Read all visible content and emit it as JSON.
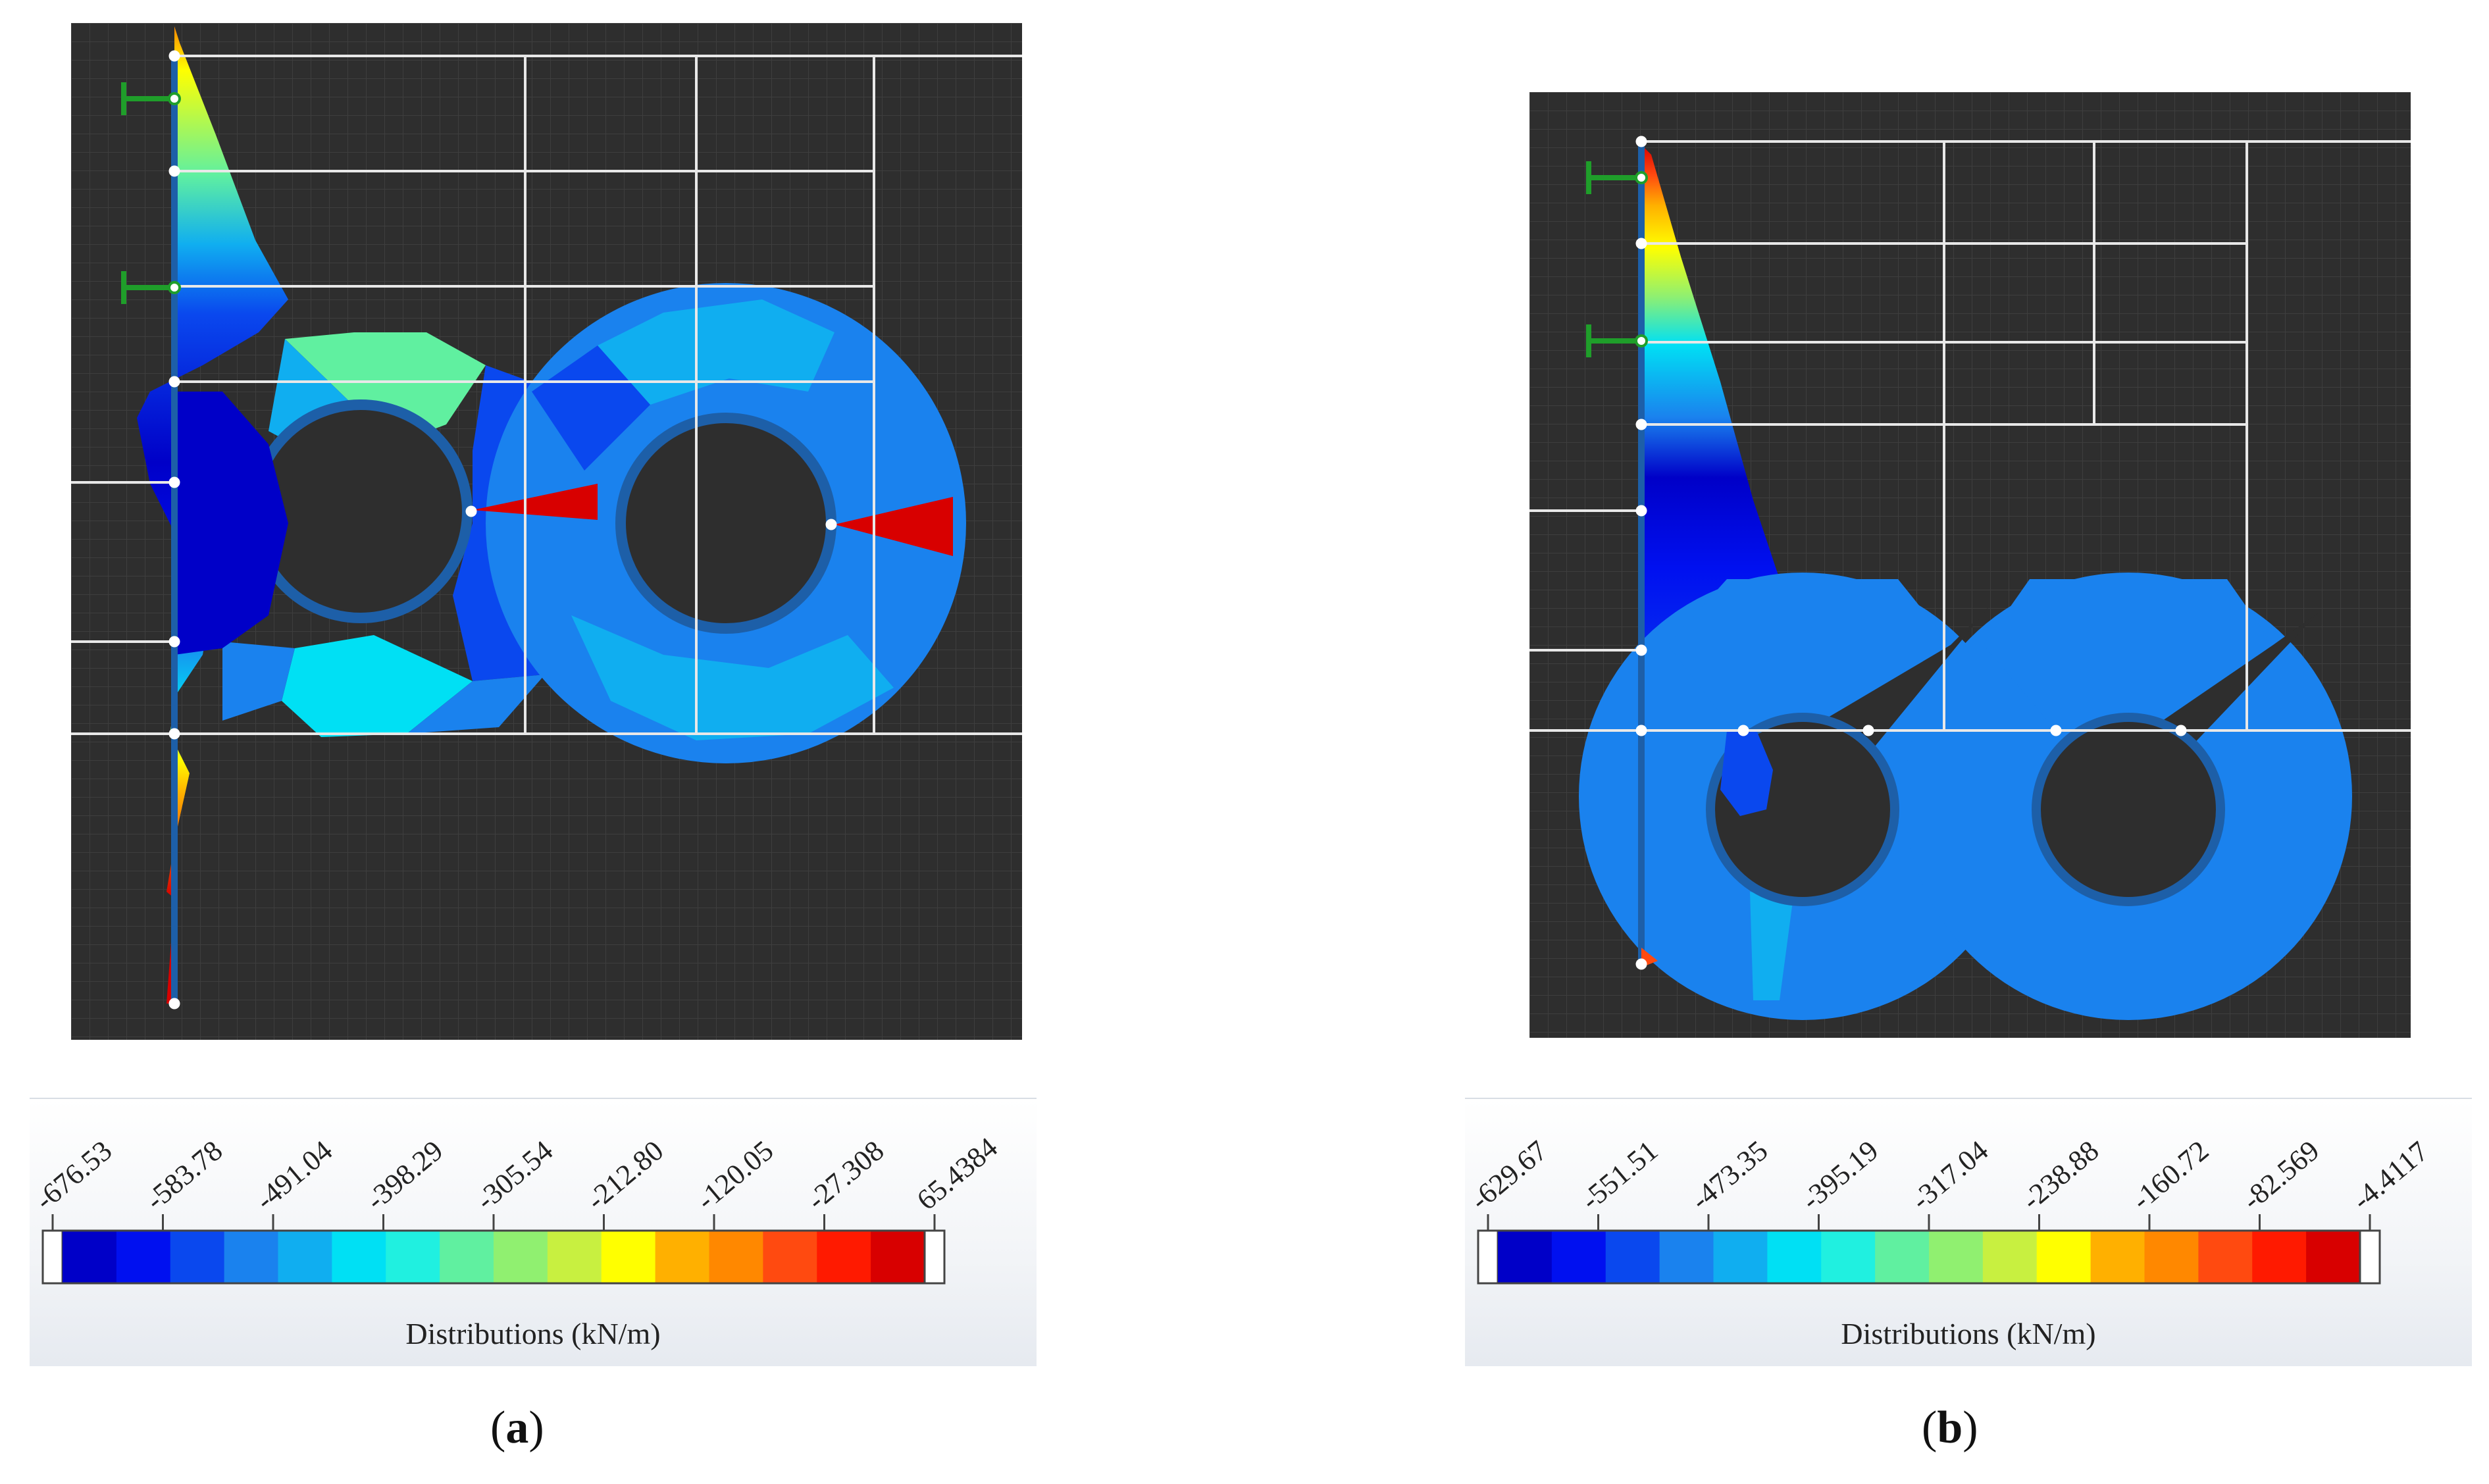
{
  "panels": [
    {
      "id": "a",
      "caption_letter": "a",
      "legend_title": "Distributions (kN/m)",
      "ticks": [
        "-676.53",
        "-583.78",
        "-491.04",
        "-398.29",
        "-305.54",
        "-212.80",
        "-120.05",
        "-27.308",
        "65.4384"
      ]
    },
    {
      "id": "b",
      "caption_letter": "b",
      "legend_title": "Distributions (kN/m)",
      "ticks": [
        "-629.67",
        "-551.51",
        "-473.35",
        "-395.19",
        "-317.04",
        "-238.88",
        "-160.72",
        "-82.569",
        "-4.4117"
      ]
    }
  ],
  "colors": {
    "background": "#2e2e2e",
    "scale": [
      "#0000c8",
      "#0010f0",
      "#0a48ee",
      "#1a82ee",
      "#10aef0",
      "#00e0f4",
      "#20f0e0",
      "#60f0a0",
      "#90f070",
      "#c8f040",
      "#ffff00",
      "#ffb000",
      "#ff8800",
      "#ff4a10",
      "#ff1a00",
      "#d80000"
    ]
  }
}
